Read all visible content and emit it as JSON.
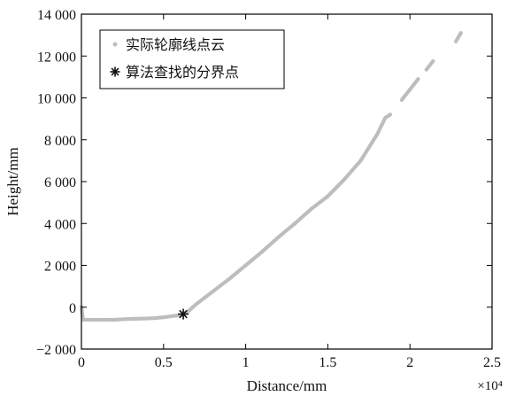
{
  "chart_data": {
    "type": "scatter",
    "xlabel": "Distance/mm",
    "ylabel": "Height/mm",
    "x_multiplier_label": "×10⁴",
    "xlim": [
      0,
      2.5
    ],
    "ylim": [
      -2000,
      14000
    ],
    "x_ticks": [
      0,
      0.5,
      1,
      1.5,
      2,
      2.5
    ],
    "x_tick_labels": [
      "0",
      "0.5",
      "1",
      "1.5",
      "2",
      "2.5"
    ],
    "y_ticks": [
      -2000,
      0,
      2000,
      4000,
      6000,
      8000,
      10000,
      12000,
      14000
    ],
    "y_tick_labels": [
      "−2 000",
      "0",
      "2 000",
      "4 000",
      "6 000",
      "8 000",
      "10 000",
      "12 000",
      "14 000"
    ],
    "grid": false,
    "legend_placement": "top-left",
    "series": [
      {
        "name": "实际轮廓线点云",
        "marker": "dot",
        "color": "#bdbdbd",
        "points": [
          [
            0.0,
            0.0
          ],
          [
            0.01,
            -600
          ],
          [
            0.1,
            -600
          ],
          [
            0.2,
            -600
          ],
          [
            0.3,
            -560
          ],
          [
            0.4,
            -540
          ],
          [
            0.45,
            -520
          ],
          [
            0.5,
            -480
          ],
          [
            0.55,
            -430
          ],
          [
            0.6,
            -380
          ],
          [
            0.62,
            -330
          ],
          [
            0.65,
            -200
          ],
          [
            0.7,
            150
          ],
          [
            0.75,
            450
          ],
          [
            0.8,
            750
          ],
          [
            0.9,
            1350
          ],
          [
            1.0,
            2000
          ],
          [
            1.1,
            2650
          ],
          [
            1.2,
            3350
          ],
          [
            1.3,
            4000
          ],
          [
            1.4,
            4700
          ],
          [
            1.5,
            5300
          ],
          [
            1.6,
            6100
          ],
          [
            1.7,
            7000
          ],
          [
            1.8,
            8250
          ],
          [
            1.85,
            9050
          ],
          [
            1.88,
            9200
          ],
          [
            1.95,
            9900
          ],
          [
            2.0,
            10400
          ],
          [
            2.05,
            10900
          ],
          [
            2.1,
            11350
          ],
          [
            2.14,
            11750
          ],
          [
            2.28,
            12700
          ],
          [
            2.31,
            13100
          ]
        ]
      },
      {
        "name": "算法查找的分界点",
        "marker": "asterisk",
        "color": "#111111",
        "points": [
          [
            0.62,
            -330
          ]
        ]
      }
    ]
  }
}
